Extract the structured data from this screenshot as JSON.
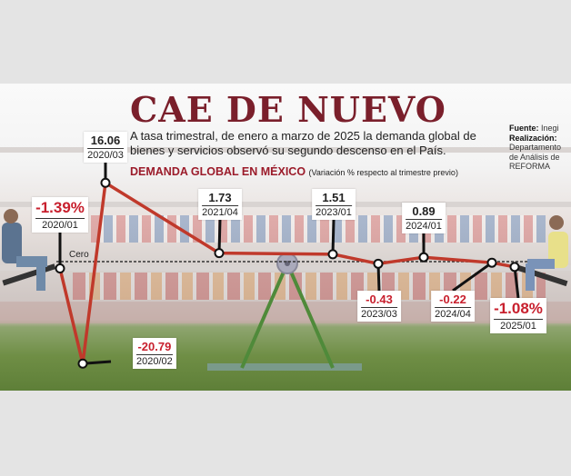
{
  "header": {
    "title": "CAE DE NUEVO",
    "subtitle": "A tasa trimestral, de enero a marzo de 2025 la demanda global de bienes y servicios observó su segundo descenso en el País.",
    "chart_label": "DEMANDA GLOBAL EN MÉXICO",
    "chart_label_note": "(Variación % respecto al trimestre previo)",
    "source_label": "Fuente:",
    "source": "Inegi",
    "credit_label": "Realización:",
    "credit": "Departamento de Análisis de REFORMA"
  },
  "chart_data": {
    "type": "line",
    "zero_label": "Cero",
    "x": [
      "2020/01",
      "2020/02",
      "2020/03",
      "2021/04",
      "2023/01",
      "2023/03",
      "2024/01",
      "2024/04",
      "2025/01"
    ],
    "values": [
      -1.39,
      -20.79,
      16.06,
      1.73,
      1.51,
      -0.43,
      0.89,
      -0.22,
      -1.08
    ],
    "labels": [
      "-1.39%",
      "-20.79",
      "16.06",
      "1.73",
      "1.51",
      "-0.43",
      "0.89",
      "-0.22",
      "-1.08%"
    ],
    "line_color": "#c0392b",
    "negative_color": "#c8202e"
  }
}
